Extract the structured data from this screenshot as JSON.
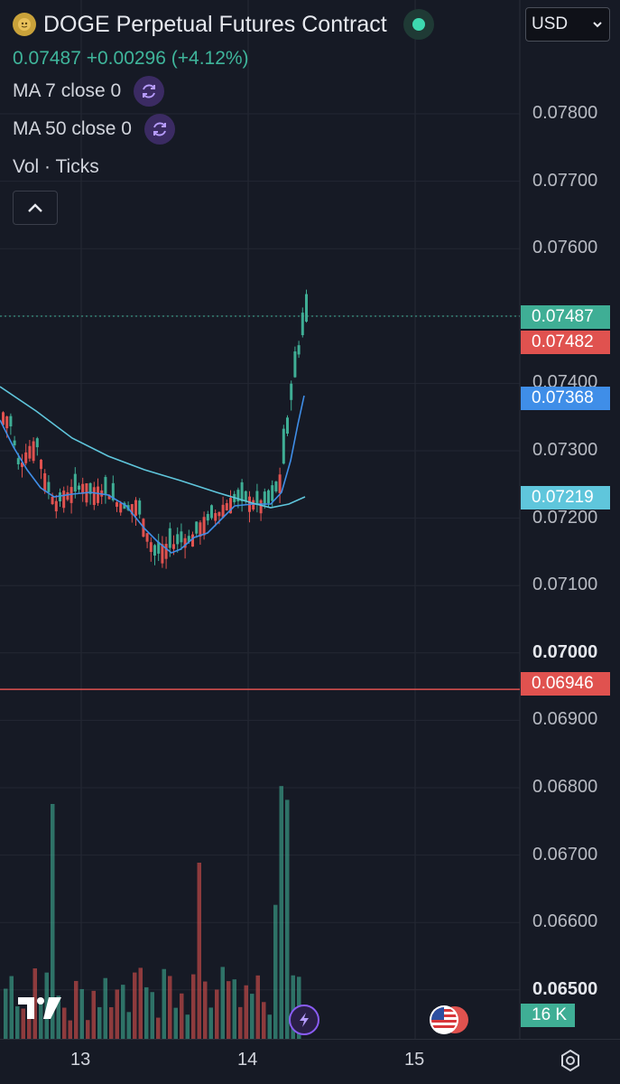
{
  "header": {
    "coin_icon": "doge-coin-icon",
    "title": "DOGE Perpetual Futures Contract",
    "status_color": "#3dd9b0",
    "currency": "USD"
  },
  "price_line": "0.07487 +0.00296 (+4.12%)",
  "indicators": [
    {
      "label": "MA 7 close 0",
      "icon": "refresh-icon"
    },
    {
      "label": "MA 50 close 0",
      "icon": "refresh-icon"
    }
  ],
  "volume_label": "Vol · Ticks",
  "price_axis": {
    "ticks": [
      "0.07800",
      "0.07700",
      "0.07600",
      "0.07400",
      "0.07300",
      "0.07200",
      "0.07100",
      "0.07000",
      "0.06900",
      "0.06800",
      "0.06700",
      "0.06600",
      "0.06500"
    ],
    "bold_ticks": [
      "0.07000",
      "0.06500"
    ]
  },
  "price_tags": [
    {
      "label": "0.07487",
      "color": "#3fae95"
    },
    {
      "label": "0.07482",
      "color": "#e0524f"
    },
    {
      "label": "0.07368",
      "color": "#3f8ee8"
    },
    {
      "label": "0.07219",
      "color": "#5fc6dc"
    },
    {
      "label": "0.06946",
      "color": "#e0524f"
    }
  ],
  "volume_tag": {
    "label": "16 K",
    "color": "#3fae95"
  },
  "time_axis": [
    "13",
    "14",
    "15"
  ],
  "colors": {
    "up": "#3fae95",
    "down": "#e0524f",
    "ma7": "#3f8ee8",
    "ma50": "#5fc6dc",
    "background": "#161a25"
  },
  "icons": {
    "logo": "tradingview-logo",
    "bolt": "bolt-icon",
    "flag": "us-flag-icon",
    "settings": "settings-icon",
    "collapse": "chevron-up-icon"
  }
}
